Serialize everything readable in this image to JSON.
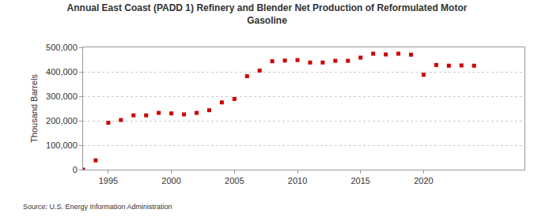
{
  "chart_data": {
    "type": "scatter",
    "title": "Annual East Coast (PADD 1) Refinery and Blender Net Production of Reformulated Motor Gasoline",
    "y_label": "Thousand Barrels",
    "annotations": [
      "Source: U.S. Energy Information Administration"
    ],
    "x": [
      1993,
      1994,
      1995,
      1996,
      1997,
      1998,
      1999,
      2000,
      2001,
      2002,
      2003,
      2004,
      2005,
      2006,
      2007,
      2008,
      2009,
      2010,
      2011,
      2012,
      2013,
      2014,
      2015,
      2016,
      2017,
      2018,
      2019,
      2020,
      2021,
      2022,
      2023,
      2024
    ],
    "values": [
      0,
      38000,
      192000,
      203000,
      222000,
      222000,
      232000,
      230000,
      226000,
      232000,
      243000,
      275000,
      289000,
      382000,
      405000,
      443000,
      446000,
      448000,
      438000,
      438000,
      445000,
      445000,
      458000,
      474000,
      471000,
      474000,
      470000,
      388000,
      428000,
      425000,
      426000,
      425000
    ],
    "color": "#cc0000",
    "marker": "square",
    "xlim": [
      1993,
      2028
    ],
    "xticks": [
      1995,
      2000,
      2005,
      2010,
      2015,
      2020
    ],
    "ylim": [
      0,
      500000
    ],
    "yticks": [
      0,
      {
        "value": 100000,
        "label": "100,000"
      },
      {
        "value": 200000,
        "label": "200,000"
      },
      {
        "value": 300000,
        "label": "300,000"
      },
      {
        "value": 400000,
        "label": "400,000"
      },
      {
        "value": 500000,
        "label": "500,000"
      }
    ],
    "grid": true
  }
}
